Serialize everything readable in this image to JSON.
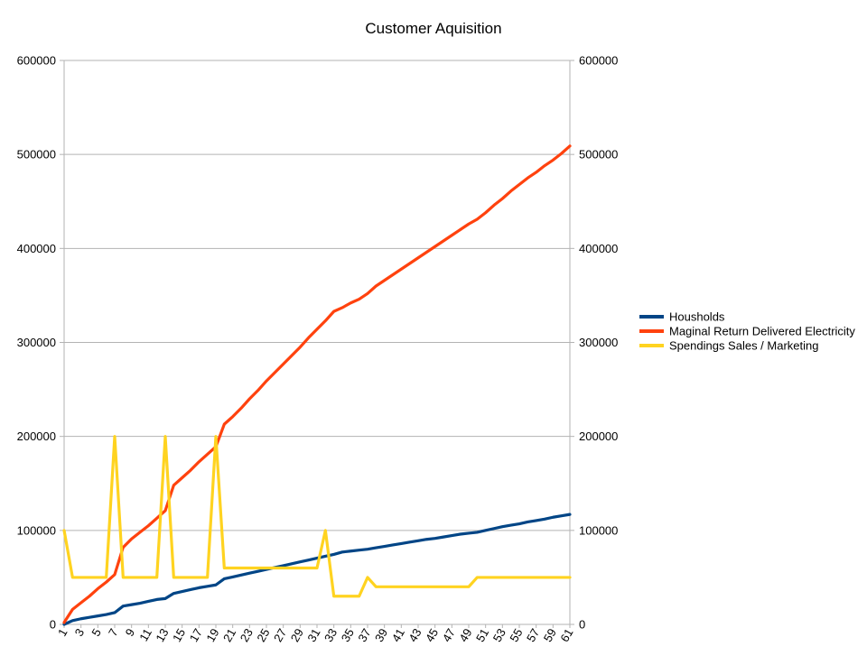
{
  "chart_data": {
    "type": "line",
    "title": "Customer Aquisition",
    "xlabel": "",
    "ylabel": "",
    "x": [
      1,
      2,
      3,
      4,
      5,
      6,
      7,
      8,
      9,
      10,
      11,
      12,
      13,
      14,
      15,
      16,
      17,
      18,
      19,
      20,
      21,
      22,
      23,
      24,
      25,
      26,
      27,
      28,
      29,
      30,
      31,
      32,
      33,
      34,
      35,
      36,
      37,
      38,
      39,
      40,
      41,
      42,
      43,
      44,
      45,
      46,
      47,
      48,
      49,
      50,
      51,
      52,
      53,
      54,
      55,
      56,
      57,
      58,
      59,
      60,
      61
    ],
    "x_tick_labels": [
      "1",
      "3",
      "5",
      "7",
      "9",
      "11",
      "13",
      "15",
      "17",
      "19",
      "21",
      "23",
      "25",
      "27",
      "29",
      "31",
      "33",
      "35",
      "37",
      "39",
      "41",
      "43",
      "45",
      "47",
      "49",
      "51",
      "53",
      "55",
      "57",
      "59",
      "61"
    ],
    "ylim": [
      0,
      600000
    ],
    "y_ticks": [
      0,
      100000,
      200000,
      300000,
      400000,
      500000,
      600000
    ],
    "y_tick_labels": [
      "0",
      "100000",
      "200000",
      "300000",
      "400000",
      "500000",
      "600000"
    ],
    "secondary_y_tick_labels": [
      "0",
      "100000",
      "200000",
      "300000",
      "400000",
      "500000",
      "600000"
    ],
    "grid": "horizontal",
    "legend_position": "right",
    "series": [
      {
        "name": "Housholds",
        "color": "#004586",
        "values": [
          0,
          4000,
          6000,
          7500,
          9000,
          10500,
          12500,
          19500,
          21000,
          22500,
          24500,
          26500,
          27500,
          33000,
          35000,
          37000,
          39000,
          40500,
          42000,
          48500,
          50500,
          52500,
          54500,
          56500,
          58500,
          60500,
          62500,
          64500,
          66500,
          68500,
          70500,
          72500,
          74500,
          77000,
          78000,
          79000,
          80000,
          81500,
          83000,
          84500,
          86000,
          87500,
          89000,
          90500,
          91500,
          93000,
          94500,
          96000,
          97000,
          98000,
          100000,
          102000,
          104000,
          105500,
          107000,
          109000,
          110500,
          112000,
          114000,
          115500,
          117000
        ]
      },
      {
        "name": "Maginal Return Delivered Electricity",
        "color": "#ff420e",
        "values": [
          2000,
          16000,
          23000,
          30000,
          38000,
          45000,
          53000,
          82000,
          91000,
          98000,
          105000,
          113000,
          121000,
          148000,
          156000,
          164000,
          173000,
          181000,
          189000,
          213000,
          221000,
          230000,
          240000,
          249000,
          259000,
          268000,
          277000,
          286000,
          295000,
          305000,
          314000,
          323000,
          333000,
          337000,
          342000,
          346000,
          352000,
          360000,
          366000,
          372000,
          378000,
          384000,
          390000,
          396000,
          402000,
          408000,
          414000,
          420000,
          426000,
          431000,
          438000,
          446000,
          453000,
          461000,
          468000,
          475000,
          481000,
          488000,
          494000,
          501000,
          509000
        ]
      },
      {
        "name": "Spendings Sales / Marketing",
        "color": "#ffd320",
        "values": [
          100000,
          50000,
          50000,
          50000,
          50000,
          50000,
          200000,
          50000,
          50000,
          50000,
          50000,
          50000,
          200000,
          50000,
          50000,
          50000,
          50000,
          50000,
          200000,
          60000,
          60000,
          60000,
          60000,
          60000,
          60000,
          60000,
          60000,
          60000,
          60000,
          60000,
          60000,
          100000,
          30000,
          30000,
          30000,
          30000,
          50000,
          40000,
          40000,
          40000,
          40000,
          40000,
          40000,
          40000,
          40000,
          40000,
          40000,
          40000,
          40000,
          50000,
          50000,
          50000,
          50000,
          50000,
          50000,
          50000,
          50000,
          50000,
          50000,
          50000,
          50000
        ]
      }
    ]
  }
}
